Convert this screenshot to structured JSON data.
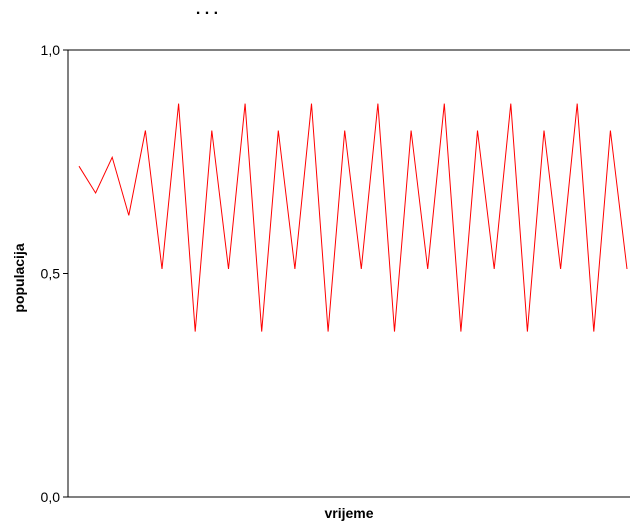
{
  "chart_data": {
    "type": "line",
    "title": ". . .",
    "xlabel": "vrijeme",
    "ylabel": "populacija",
    "ylim": [
      0,
      1
    ],
    "yticks": [
      "0,0",
      "0,5",
      "1,0"
    ],
    "grid": false,
    "legend": "none",
    "series": [
      {
        "color": "#ff0000",
        "x": [
          0,
          1,
          2,
          3,
          4,
          5,
          6,
          7,
          8,
          9,
          10,
          11,
          12,
          13,
          14,
          15,
          16,
          17,
          18,
          19,
          20,
          21,
          22,
          23,
          24,
          25,
          26,
          27,
          28,
          29,
          30,
          31,
          32,
          33
        ],
        "values": [
          0.74,
          0.68,
          0.76,
          0.63,
          0.82,
          0.51,
          0.88,
          0.37,
          0.82,
          0.51,
          0.88,
          0.37,
          0.82,
          0.51,
          0.88,
          0.37,
          0.82,
          0.51,
          0.88,
          0.37,
          0.82,
          0.51,
          0.88,
          0.37,
          0.82,
          0.51,
          0.88,
          0.37,
          0.82,
          0.51,
          0.88,
          0.37,
          0.82,
          0.51
        ]
      }
    ]
  }
}
